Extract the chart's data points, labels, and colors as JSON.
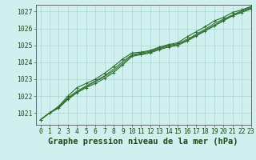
{
  "title": "Graphe pression niveau de la mer (hPa)",
  "background_color": "#cff0ee",
  "grid_color": "#aad4d0",
  "line_color": "#2d6b2d",
  "xlim": [
    -0.5,
    23
  ],
  "ylim": [
    1020.3,
    1027.4
  ],
  "yticks": [
    1021,
    1022,
    1023,
    1024,
    1025,
    1026,
    1027
  ],
  "xticks": [
    0,
    1,
    2,
    3,
    4,
    5,
    6,
    7,
    8,
    9,
    10,
    11,
    12,
    13,
    14,
    15,
    16,
    17,
    18,
    19,
    20,
    21,
    22,
    23
  ],
  "series": [
    [
      1020.6,
      1021.0,
      1021.3,
      1021.8,
      1022.2,
      1022.5,
      1022.75,
      1023.05,
      1023.4,
      1023.85,
      1024.35,
      1024.45,
      1024.55,
      1024.75,
      1024.9,
      1025.0,
      1025.25,
      1025.55,
      1025.85,
      1026.15,
      1026.45,
      1026.75,
      1026.95,
      1027.15
    ],
    [
      1020.6,
      1021.0,
      1021.3,
      1021.85,
      1022.25,
      1022.55,
      1022.85,
      1023.15,
      1023.5,
      1023.95,
      1024.4,
      1024.5,
      1024.6,
      1024.8,
      1024.95,
      1025.05,
      1025.3,
      1025.6,
      1025.9,
      1026.2,
      1026.5,
      1026.75,
      1027.0,
      1027.2
    ],
    [
      1020.6,
      1021.0,
      1021.35,
      1021.9,
      1022.3,
      1022.6,
      1022.9,
      1023.2,
      1023.6,
      1024.05,
      1024.45,
      1024.55,
      1024.65,
      1024.85,
      1025.0,
      1025.1,
      1025.35,
      1025.65,
      1025.95,
      1026.3,
      1026.55,
      1026.8,
      1027.05,
      1027.25
    ],
    [
      1020.6,
      1021.0,
      1021.4,
      1022.0,
      1022.5,
      1022.75,
      1023.0,
      1023.35,
      1023.75,
      1024.2,
      1024.55,
      1024.6,
      1024.7,
      1024.9,
      1025.05,
      1025.15,
      1025.5,
      1025.8,
      1026.1,
      1026.45,
      1026.65,
      1026.95,
      1027.1,
      1027.3
    ]
  ],
  "title_fontsize": 7.5,
  "tick_fontsize": 5.8,
  "fig_width": 3.2,
  "fig_height": 2.0,
  "dpi": 100
}
